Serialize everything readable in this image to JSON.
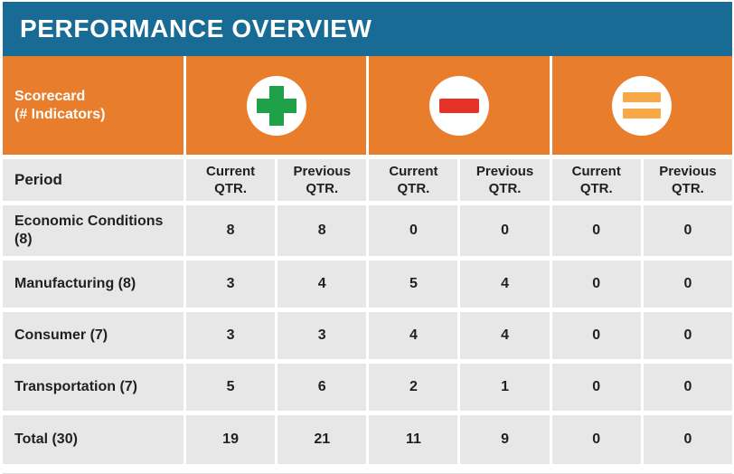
{
  "colors": {
    "banner_blue": "#176B94",
    "orange": "#E87D2B",
    "row_gray": "#E7E7E8",
    "text_dark": "#231F20",
    "plus_green": "#1FA14A",
    "minus_red": "#E5332A",
    "equals_amber": "#F8A844",
    "circle_white": "#FFFFFF"
  },
  "scorecard": {
    "line1": "Scorecard",
    "line2": "(# Indicators)"
  },
  "chart_data": {
    "type": "table",
    "title": "PERFORMANCE OVERVIEW",
    "row_header": "Period",
    "column_groups": [
      {
        "icon": "plus-icon",
        "meaning": "positive indicators",
        "color": "#1FA14A"
      },
      {
        "icon": "minus-icon",
        "meaning": "negative indicators",
        "color": "#E5332A"
      },
      {
        "icon": "equals-icon",
        "meaning": "unchanged indicators",
        "color": "#F8A844"
      }
    ],
    "columns": [
      "Current QTR.",
      "Previous QTR.",
      "Current QTR.",
      "Previous QTR.",
      "Current QTR.",
      "Previous QTR."
    ],
    "rows": [
      {
        "label": "Economic Conditions (8)",
        "values": [
          8,
          8,
          0,
          0,
          0,
          0
        ]
      },
      {
        "label": "Manufacturing (8)",
        "values": [
          3,
          4,
          5,
          4,
          0,
          0
        ]
      },
      {
        "label": "Consumer (7)",
        "values": [
          3,
          3,
          4,
          4,
          0,
          0
        ]
      },
      {
        "label": "Transportation (7)",
        "values": [
          5,
          6,
          2,
          1,
          0,
          0
        ]
      },
      {
        "label": "Total (30)",
        "values": [
          19,
          21,
          11,
          9,
          0,
          0
        ]
      }
    ]
  }
}
